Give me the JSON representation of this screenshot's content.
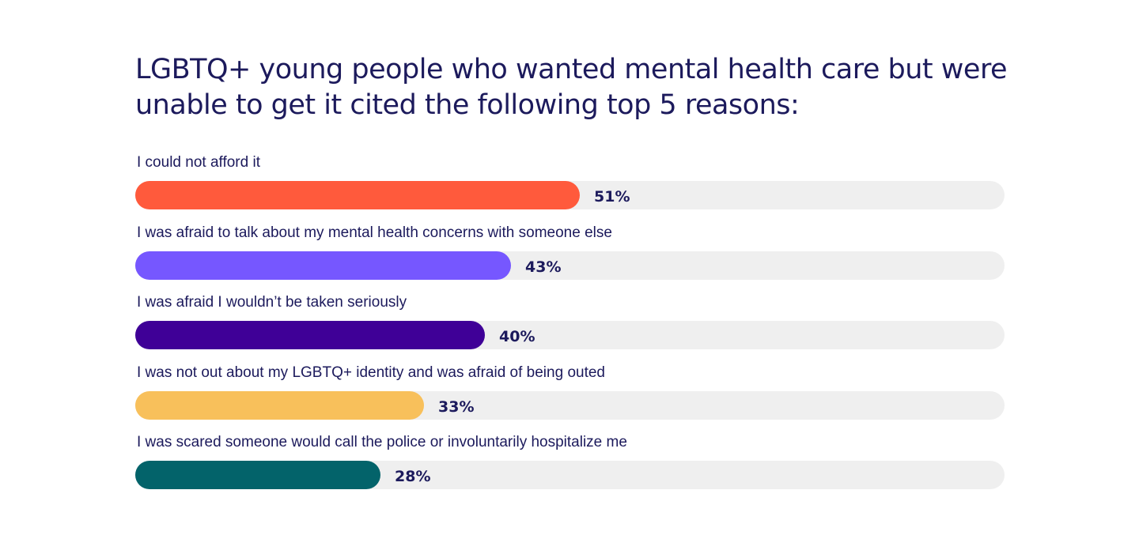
{
  "chart_data": {
    "type": "bar",
    "orientation": "horizontal",
    "title": "LGBTQ+ young people who wanted mental health care but were unable to get it cited the following top 5 reasons:",
    "xlim": [
      0,
      100
    ],
    "grid": false,
    "categories": [
      "I could not afford it",
      "I was afraid to talk about my mental health concerns with someone else",
      "I was afraid I wouldn’t be taken seriously",
      "I was not out about my LGBTQ+ identity and was afraid of being outed",
      "I was scared someone would call the police or involuntarily hospitalize me"
    ],
    "values": [
      51,
      43,
      40,
      33,
      28
    ],
    "value_labels": [
      "51%",
      "43%",
      "40%",
      "33%",
      "28%"
    ],
    "colors": [
      "#ff5a3c",
      "#7657ff",
      "#3f0097",
      "#f8c05b",
      "#03636a"
    ],
    "track_color": "#efefef"
  }
}
